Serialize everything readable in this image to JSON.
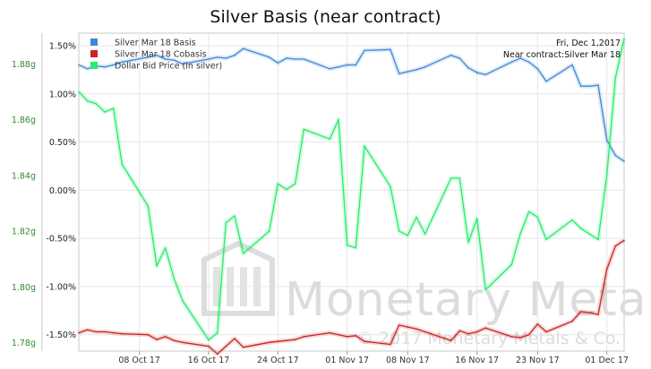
{
  "chart_data": {
    "type": "line",
    "title": "Silver Basis (near contract)",
    "info": {
      "date": "Fri, Dec 1,2017",
      "contract": "Near contract:Silver Mar 18"
    },
    "watermark": {
      "brand": "Monetary Metals",
      "copyright": "© 2017 Monetary Metals & Co."
    },
    "x_ticks": [
      "08 Oct 17",
      "16 Oct 17",
      "24 Oct 17",
      "01 Nov 17",
      "08 Nov 17",
      "16 Nov 17",
      "23 Nov 17",
      "01 Dec 17"
    ],
    "y_left_ticks": [
      "1.78g",
      "1.80g",
      "1.82g",
      "1.84g",
      "1.86g",
      "1.88g"
    ],
    "y_right_ticks": [
      "-1.50%",
      "-1.00%",
      "-0.50%",
      "0.00%",
      "0.50%",
      "1.00%",
      "1.50%"
    ],
    "y_left_range": [
      1.777,
      1.891
    ],
    "y_right_range": [
      -1.67,
      1.63
    ],
    "x_range": [
      "2017-10-01",
      "2017-12-01"
    ],
    "grid": true,
    "legend_position": "top-left",
    "series": [
      {
        "name": "Silver Mar 18 Basis",
        "color": "#3f88d6",
        "axis": "right",
        "points": [
          [
            "2017-10-01",
            1.3
          ],
          [
            "2017-10-02",
            1.26
          ],
          [
            "2017-10-03",
            1.29
          ],
          [
            "2017-10-04",
            1.28
          ],
          [
            "2017-10-05",
            1.3
          ],
          [
            "2017-10-06",
            1.33
          ],
          [
            "2017-10-09",
            1.38
          ],
          [
            "2017-10-10",
            1.4
          ],
          [
            "2017-10-11",
            1.36
          ],
          [
            "2017-10-12",
            1.35
          ],
          [
            "2017-10-13",
            1.31
          ],
          [
            "2017-10-16",
            1.36
          ],
          [
            "2017-10-17",
            1.38
          ],
          [
            "2017-10-18",
            1.37
          ],
          [
            "2017-10-19",
            1.4
          ],
          [
            "2017-10-20",
            1.47
          ],
          [
            "2017-10-23",
            1.38
          ],
          [
            "2017-10-24",
            1.32
          ],
          [
            "2017-10-25",
            1.37
          ],
          [
            "2017-10-26",
            1.36
          ],
          [
            "2017-10-27",
            1.36
          ],
          [
            "2017-10-30",
            1.26
          ],
          [
            "2017-10-31",
            1.28
          ],
          [
            "2017-11-01",
            1.3
          ],
          [
            "2017-11-02",
            1.3
          ],
          [
            "2017-11-03",
            1.45
          ],
          [
            "2017-11-06",
            1.46
          ],
          [
            "2017-11-07",
            1.21
          ],
          [
            "2017-11-08",
            1.23
          ],
          [
            "2017-11-09",
            1.25
          ],
          [
            "2017-11-10",
            1.28
          ],
          [
            "2017-11-13",
            1.4
          ],
          [
            "2017-11-14",
            1.37
          ],
          [
            "2017-11-15",
            1.27
          ],
          [
            "2017-11-16",
            1.22
          ],
          [
            "2017-11-17",
            1.2
          ],
          [
            "2017-11-20",
            1.33
          ],
          [
            "2017-11-21",
            1.37
          ],
          [
            "2017-11-22",
            1.33
          ],
          [
            "2017-11-23",
            1.26
          ],
          [
            "2017-11-24",
            1.13
          ],
          [
            "2017-11-27",
            1.3
          ],
          [
            "2017-11-28",
            1.08
          ],
          [
            "2017-11-29",
            1.08
          ],
          [
            "2017-11-30",
            1.09
          ],
          [
            "2017-12-01",
            0.52
          ],
          [
            "2017-12-02",
            0.36
          ],
          [
            "2017-12-03",
            0.3
          ]
        ]
      },
      {
        "name": "Silver Mar 18 Cobasis",
        "color": "#cc2222",
        "axis": "right",
        "points": [
          [
            "2017-10-01",
            -1.48
          ],
          [
            "2017-10-02",
            -1.45
          ],
          [
            "2017-10-03",
            -1.47
          ],
          [
            "2017-10-04",
            -1.47
          ],
          [
            "2017-10-05",
            -1.48
          ],
          [
            "2017-10-06",
            -1.49
          ],
          [
            "2017-10-09",
            -1.5
          ],
          [
            "2017-10-10",
            -1.55
          ],
          [
            "2017-10-11",
            -1.52
          ],
          [
            "2017-10-12",
            -1.56
          ],
          [
            "2017-10-13",
            -1.58
          ],
          [
            "2017-10-16",
            -1.62
          ],
          [
            "2017-10-17",
            -1.7
          ],
          [
            "2017-10-18",
            -1.62
          ],
          [
            "2017-10-19",
            -1.54
          ],
          [
            "2017-10-20",
            -1.63
          ],
          [
            "2017-10-23",
            -1.58
          ],
          [
            "2017-10-24",
            -1.57
          ],
          [
            "2017-10-25",
            -1.56
          ],
          [
            "2017-10-26",
            -1.55
          ],
          [
            "2017-10-27",
            -1.52
          ],
          [
            "2017-10-30",
            -1.48
          ],
          [
            "2017-10-31",
            -1.5
          ],
          [
            "2017-11-01",
            -1.52
          ],
          [
            "2017-11-02",
            -1.51
          ],
          [
            "2017-11-03",
            -1.57
          ],
          [
            "2017-11-06",
            -1.6
          ],
          [
            "2017-11-07",
            -1.4
          ],
          [
            "2017-11-08",
            -1.42
          ],
          [
            "2017-11-09",
            -1.44
          ],
          [
            "2017-11-10",
            -1.47
          ],
          [
            "2017-11-13",
            -1.56
          ],
          [
            "2017-11-14",
            -1.46
          ],
          [
            "2017-11-15",
            -1.49
          ],
          [
            "2017-11-16",
            -1.47
          ],
          [
            "2017-11-17",
            -1.43
          ],
          [
            "2017-11-20",
            -1.52
          ],
          [
            "2017-11-21",
            -1.53
          ],
          [
            "2017-11-22",
            -1.5
          ],
          [
            "2017-11-23",
            -1.39
          ],
          [
            "2017-11-24",
            -1.47
          ],
          [
            "2017-11-27",
            -1.36
          ],
          [
            "2017-11-28",
            -1.26
          ],
          [
            "2017-11-29",
            -1.27
          ],
          [
            "2017-11-30",
            -1.29
          ],
          [
            "2017-12-01",
            -0.82
          ],
          [
            "2017-12-02",
            -0.58
          ],
          [
            "2017-12-03",
            -0.52
          ]
        ]
      },
      {
        "name": "Dollar Bid Price (in silver)",
        "color": "#22ee66",
        "axis": "left",
        "points": [
          [
            "2017-10-01",
            1.87
          ],
          [
            "2017-10-02",
            1.8667
          ],
          [
            "2017-10-03",
            1.8657
          ],
          [
            "2017-10-04",
            1.8627
          ],
          [
            "2017-10-05",
            1.864
          ],
          [
            "2017-10-06",
            1.844
          ],
          [
            "2017-10-09",
            1.829
          ],
          [
            "2017-10-10",
            1.8075
          ],
          [
            "2017-10-11",
            1.814
          ],
          [
            "2017-10-12",
            1.803
          ],
          [
            "2017-10-13",
            1.795
          ],
          [
            "2017-10-16",
            1.781
          ],
          [
            "2017-10-17",
            1.7835
          ],
          [
            "2017-10-18",
            1.823
          ],
          [
            "2017-10-19",
            1.8255
          ],
          [
            "2017-10-20",
            1.812
          ],
          [
            "2017-10-23",
            1.82
          ],
          [
            "2017-10-24",
            1.837
          ],
          [
            "2017-10-25",
            1.835
          ],
          [
            "2017-10-26",
            1.837
          ],
          [
            "2017-10-27",
            1.8565
          ],
          [
            "2017-10-30",
            1.853
          ],
          [
            "2017-10-31",
            1.86
          ],
          [
            "2017-11-01",
            1.815
          ],
          [
            "2017-11-02",
            1.814
          ],
          [
            "2017-11-03",
            1.8505
          ],
          [
            "2017-11-06",
            1.836
          ],
          [
            "2017-11-07",
            1.82
          ],
          [
            "2017-11-08",
            1.8185
          ],
          [
            "2017-11-09",
            1.825
          ],
          [
            "2017-11-10",
            1.819
          ],
          [
            "2017-11-13",
            1.839
          ],
          [
            "2017-11-14",
            1.839
          ],
          [
            "2017-11-15",
            1.816
          ],
          [
            "2017-11-16",
            1.8245
          ],
          [
            "2017-11-17",
            1.799
          ],
          [
            "2017-11-20",
            1.808
          ],
          [
            "2017-11-21",
            1.819
          ],
          [
            "2017-11-22",
            1.827
          ],
          [
            "2017-11-23",
            1.825
          ],
          [
            "2017-11-24",
            1.817
          ],
          [
            "2017-11-27",
            1.824
          ],
          [
            "2017-11-28",
            1.821
          ],
          [
            "2017-11-29",
            1.819
          ],
          [
            "2017-11-30",
            1.817
          ],
          [
            "2017-12-01",
            1.84
          ],
          [
            "2017-12-02",
            1.875
          ],
          [
            "2017-12-03",
            1.889
          ]
        ]
      }
    ]
  }
}
